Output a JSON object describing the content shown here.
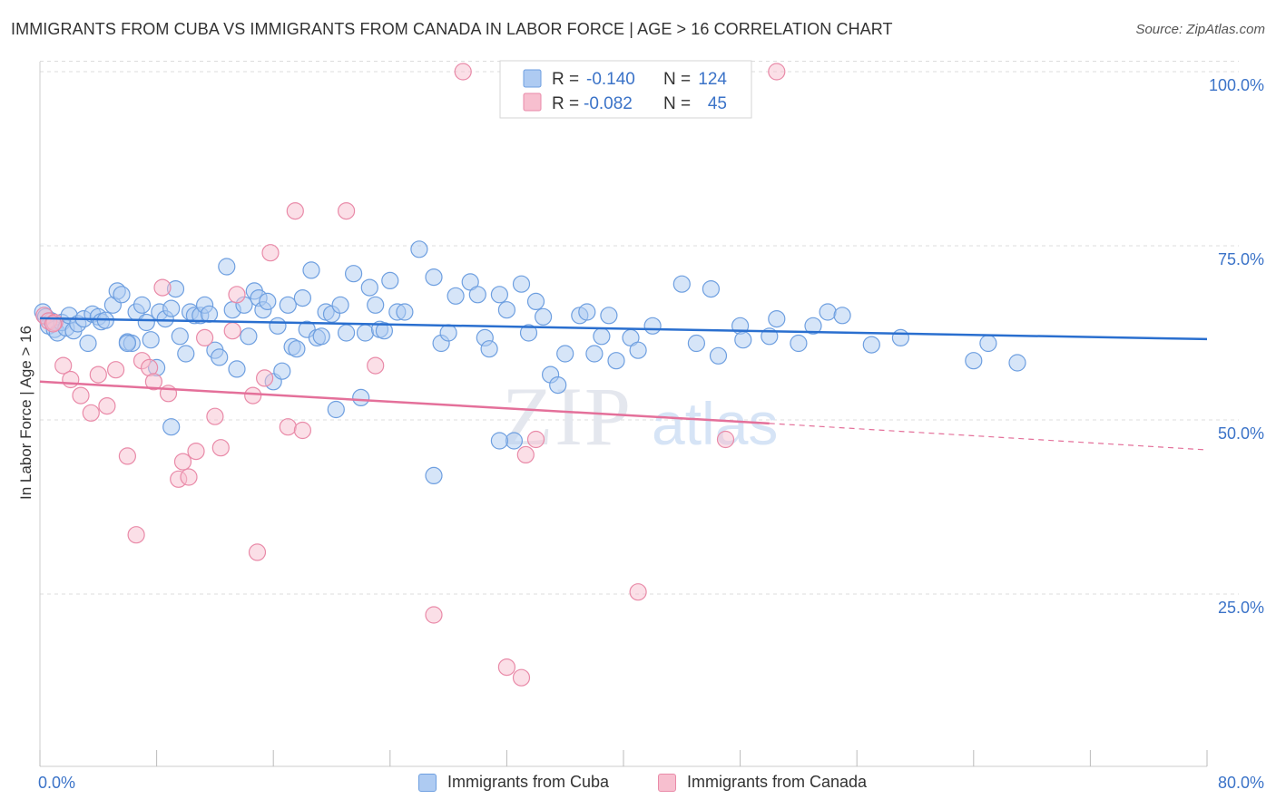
{
  "title": "IMMIGRANTS FROM CUBA VS IMMIGRANTS FROM CANADA IN LABOR FORCE | AGE > 16 CORRELATION CHART",
  "source": "Source: ZipAtlas.com",
  "watermark": {
    "zip": "ZIP",
    "atlas": "atlas"
  },
  "colors": {
    "cuba_fill": "#aecbf2",
    "cuba_stroke": "#6e9fe0",
    "cuba_line": "#2a6fcf",
    "canada_fill": "#f7bfcf",
    "canada_stroke": "#e98aa8",
    "canada_line": "#e4709a",
    "axis_label": "#3b73c8",
    "grid": "#dcdcdc"
  },
  "legend": [
    {
      "r_label": "R =",
      "r_value": "-0.140",
      "n_label": "N =",
      "n_value": "124"
    },
    {
      "r_label": "R =",
      "r_value": "-0.082",
      "n_label": "N =",
      "n_value": "45"
    }
  ],
  "chart_data": {
    "type": "scatter",
    "title": "IMMIGRANTS FROM CUBA VS IMMIGRANTS FROM CANADA IN LABOR FORCE | AGE > 16 CORRELATION CHART",
    "xlabel": "",
    "ylabel": "In Labor Force | Age > 16",
    "xlim": [
      0,
      80
    ],
    "ylim": [
      0,
      105
    ],
    "x_tick_labels": [
      "0.0%",
      "80.0%"
    ],
    "y_ticks": [
      25,
      50,
      75,
      100
    ],
    "y_tick_labels": [
      "25.0%",
      "50.0%",
      "75.0%",
      "100.0%"
    ],
    "grid": "horizontal dashed",
    "legend_position": "top-center",
    "series": [
      {
        "name": "Immigrants from Cuba",
        "r": -0.14,
        "n": 124,
        "trend": {
          "x": [
            0,
            80
          ],
          "y": [
            64.6,
            61.6
          ]
        },
        "points": [
          [
            0.2,
            65.5
          ],
          [
            0.4,
            64.8
          ],
          [
            0.6,
            63.5
          ],
          [
            0.8,
            64.2
          ],
          [
            1.0,
            63.0
          ],
          [
            1.2,
            62.5
          ],
          [
            1.5,
            64.0
          ],
          [
            1.8,
            63.2
          ],
          [
            2.0,
            65.0
          ],
          [
            2.3,
            62.8
          ],
          [
            2.6,
            63.8
          ],
          [
            3.0,
            64.5
          ],
          [
            3.3,
            61.0
          ],
          [
            3.6,
            65.2
          ],
          [
            4.0,
            64.8
          ],
          [
            4.2,
            64.1
          ],
          [
            4.5,
            64.3
          ],
          [
            5.0,
            66.5
          ],
          [
            5.3,
            68.5
          ],
          [
            5.6,
            68.0
          ],
          [
            6.0,
            61.2
          ],
          [
            6.3,
            61.0
          ],
          [
            6.6,
            65.5
          ],
          [
            7.0,
            66.5
          ],
          [
            7.3,
            64.0
          ],
          [
            7.6,
            61.5
          ],
          [
            8.0,
            57.5
          ],
          [
            8.2,
            65.5
          ],
          [
            8.6,
            64.5
          ],
          [
            9.0,
            66.0
          ],
          [
            9.3,
            68.8
          ],
          [
            9.6,
            62.0
          ],
          [
            10.0,
            59.5
          ],
          [
            10.3,
            65.5
          ],
          [
            10.6,
            65.0
          ],
          [
            11.0,
            65.0
          ],
          [
            11.3,
            66.5
          ],
          [
            11.6,
            65.2
          ],
          [
            12.0,
            60.0
          ],
          [
            12.3,
            59.0
          ],
          [
            12.8,
            72.0
          ],
          [
            13.2,
            65.8
          ],
          [
            13.5,
            57.3
          ],
          [
            14.0,
            66.5
          ],
          [
            14.3,
            62.0
          ],
          [
            14.7,
            68.5
          ],
          [
            15.0,
            67.5
          ],
          [
            15.3,
            65.8
          ],
          [
            15.6,
            67.0
          ],
          [
            16.0,
            55.5
          ],
          [
            16.3,
            63.5
          ],
          [
            16.6,
            57.0
          ],
          [
            17.0,
            66.5
          ],
          [
            17.3,
            60.5
          ],
          [
            17.6,
            60.2
          ],
          [
            18.0,
            67.5
          ],
          [
            18.3,
            63.0
          ],
          [
            18.6,
            71.5
          ],
          [
            19.0,
            61.8
          ],
          [
            19.3,
            62.0
          ],
          [
            19.6,
            65.5
          ],
          [
            20.0,
            65.2
          ],
          [
            20.3,
            51.5
          ],
          [
            20.6,
            66.5
          ],
          [
            21.0,
            62.5
          ],
          [
            21.5,
            71.0
          ],
          [
            22.0,
            53.2
          ],
          [
            22.3,
            62.5
          ],
          [
            22.6,
            69.0
          ],
          [
            23.0,
            66.5
          ],
          [
            23.3,
            63.0
          ],
          [
            23.6,
            62.8
          ],
          [
            24.0,
            70.0
          ],
          [
            24.5,
            65.5
          ],
          [
            25.0,
            65.5
          ],
          [
            26.0,
            74.5
          ],
          [
            27.0,
            70.5
          ],
          [
            27.5,
            61.0
          ],
          [
            28.0,
            62.5
          ],
          [
            28.5,
            67.8
          ],
          [
            29.5,
            69.8
          ],
          [
            30.0,
            68.0
          ],
          [
            30.5,
            61.8
          ],
          [
            30.8,
            60.2
          ],
          [
            31.5,
            68.0
          ],
          [
            32.0,
            65.8
          ],
          [
            32.5,
            47.0
          ],
          [
            33.0,
            69.5
          ],
          [
            33.5,
            62.5
          ],
          [
            34.0,
            67.0
          ],
          [
            34.5,
            64.8
          ],
          [
            35.0,
            56.5
          ],
          [
            35.5,
            55.0
          ],
          [
            36.0,
            59.5
          ],
          [
            37.0,
            65.0
          ],
          [
            37.5,
            65.5
          ],
          [
            38.0,
            59.5
          ],
          [
            38.5,
            62.0
          ],
          [
            39.0,
            65.0
          ],
          [
            39.5,
            58.5
          ],
          [
            40.5,
            61.8
          ],
          [
            41.0,
            60.0
          ],
          [
            42.0,
            63.5
          ],
          [
            44.0,
            69.5
          ],
          [
            45.0,
            61.0
          ],
          [
            46.5,
            59.2
          ],
          [
            46.0,
            68.8
          ],
          [
            48.0,
            63.5
          ],
          [
            48.2,
            61.5
          ],
          [
            50.0,
            62.0
          ],
          [
            50.5,
            64.5
          ],
          [
            52.0,
            61.0
          ],
          [
            53.0,
            63.5
          ],
          [
            54.0,
            65.5
          ],
          [
            55.0,
            65.0
          ],
          [
            57.0,
            60.8
          ],
          [
            59.0,
            61.8
          ],
          [
            64.0,
            58.5
          ],
          [
            65.0,
            61.0
          ],
          [
            67.0,
            58.2
          ],
          [
            27.0,
            42.0
          ],
          [
            9.0,
            49.0
          ],
          [
            31.5,
            47.0
          ],
          [
            6.0,
            61.0
          ]
        ]
      },
      {
        "name": "Immigrants from Canada",
        "r": -0.082,
        "n": 45,
        "trend": {
          "x": [
            0,
            50
          ],
          "y": [
            55.5,
            49.5
          ],
          "dashed_to": {
            "x": 80,
            "y": 45.7
          }
        },
        "points": [
          [
            0.3,
            65.0
          ],
          [
            0.6,
            64.2
          ],
          [
            1.0,
            64.0
          ],
          [
            1.6,
            57.8
          ],
          [
            2.1,
            55.8
          ],
          [
            2.8,
            53.5
          ],
          [
            3.5,
            51.0
          ],
          [
            4.0,
            56.5
          ],
          [
            4.6,
            52.0
          ],
          [
            5.2,
            57.2
          ],
          [
            6.0,
            44.8
          ],
          [
            6.6,
            33.5
          ],
          [
            7.0,
            58.5
          ],
          [
            7.5,
            57.5
          ],
          [
            7.8,
            55.5
          ],
          [
            8.4,
            69.0
          ],
          [
            8.8,
            53.8
          ],
          [
            9.5,
            41.5
          ],
          [
            9.8,
            44.0
          ],
          [
            10.2,
            41.8
          ],
          [
            10.7,
            45.5
          ],
          [
            11.3,
            61.8
          ],
          [
            12.0,
            50.5
          ],
          [
            12.4,
            46.0
          ],
          [
            13.2,
            62.8
          ],
          [
            13.5,
            68.0
          ],
          [
            14.6,
            53.5
          ],
          [
            14.9,
            31.0
          ],
          [
            15.4,
            56.0
          ],
          [
            15.8,
            74.0
          ],
          [
            17.0,
            49.0
          ],
          [
            17.5,
            80.0
          ],
          [
            18.0,
            48.5
          ],
          [
            21.0,
            80.0
          ],
          [
            23.0,
            57.8
          ],
          [
            27.0,
            22.0
          ],
          [
            29.0,
            100.0
          ],
          [
            32.0,
            14.5
          ],
          [
            33.0,
            13.0
          ],
          [
            33.3,
            45.0
          ],
          [
            34.0,
            47.2
          ],
          [
            41.0,
            25.3
          ],
          [
            47.0,
            47.2
          ],
          [
            50.5,
            100.0
          ],
          [
            0.9,
            63.8
          ]
        ]
      }
    ]
  }
}
